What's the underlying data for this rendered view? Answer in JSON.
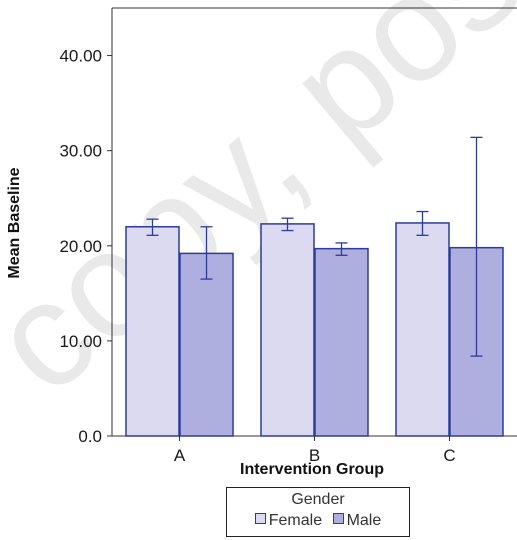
{
  "watermark_text": "copy, post",
  "colors": {
    "female": "#dcdaf0",
    "male": "#aeaedf",
    "stroke": "#2a3d9a",
    "axis": "#333333"
  },
  "chart_data": {
    "type": "bar",
    "xlabel": "Intervention Group",
    "ylabel": "Mean Baseline",
    "categories": [
      "A",
      "B",
      "C"
    ],
    "ylim": [
      0,
      45
    ],
    "yticks": [
      0,
      10,
      20,
      30,
      40
    ],
    "ytick_labels": [
      "0.0",
      "10.00",
      "20.00",
      "30.00",
      "40.00"
    ],
    "grid": false,
    "series": [
      {
        "name": "Female",
        "values": [
          22.0,
          22.3,
          22.4
        ],
        "error_low": [
          21.1,
          21.6,
          21.1
        ],
        "error_high": [
          22.8,
          22.9,
          23.6
        ]
      },
      {
        "name": "Male",
        "values": [
          19.2,
          19.7,
          19.8
        ],
        "error_low": [
          16.5,
          19.0,
          8.4
        ],
        "error_high": [
          22.0,
          20.3,
          31.4
        ]
      }
    ],
    "legend": {
      "title": "Gender",
      "position": "bottom-center"
    }
  }
}
